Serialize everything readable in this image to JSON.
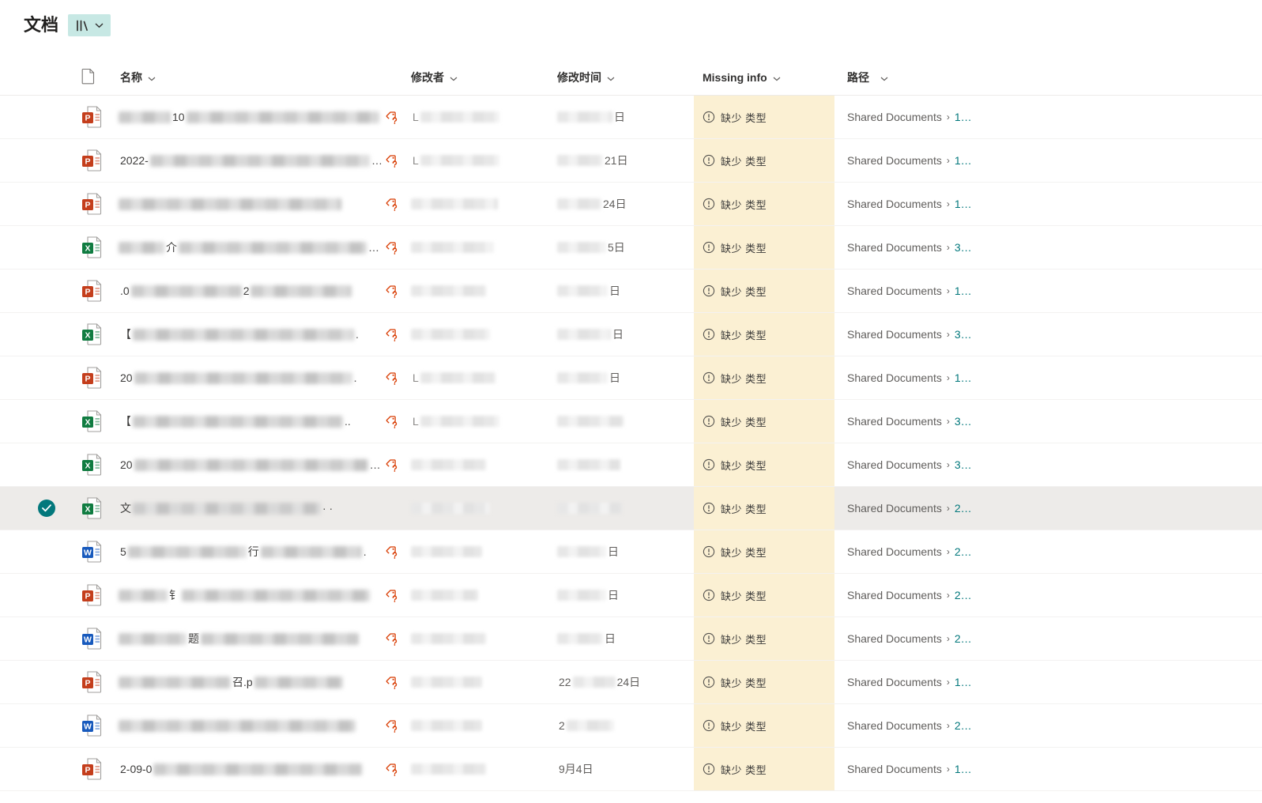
{
  "colors": {
    "accent_teal": "#03787c",
    "view_pill_bg": "#c7e8e4",
    "missing_bg": "#fbf0d3",
    "tag_orange": "#d83b01",
    "selected_row": "#edebe9",
    "path_link": "#03787c"
  },
  "header": {
    "title": "文档"
  },
  "file_types": {
    "pptx": {
      "letter": "P",
      "color": "#c43e1c"
    },
    "xlsx": {
      "letter": "X",
      "color": "#107c41"
    },
    "docx": {
      "letter": "W",
      "color": "#185abd"
    }
  },
  "table": {
    "columns": [
      {
        "id": "name",
        "label": "名称"
      },
      {
        "id": "modified_by",
        "label": "修改者"
      },
      {
        "id": "modified",
        "label": "修改时间"
      },
      {
        "id": "missing_info",
        "label": "Missing info"
      },
      {
        "id": "path",
        "label": "路径"
      }
    ],
    "missing_info_label": "缺少 类型",
    "path_prefix": "Shared Documents",
    "path_separator": "›",
    "rows": [
      {
        "type": "pptx",
        "selected": false,
        "tag": true,
        "name": {
          "pre": "",
          "b1": 66,
          "mid": "10",
          "b2": 244,
          "post": ""
        },
        "by": {
          "pre": "L",
          "b": 100
        },
        "date": {
          "pre": "",
          "b": 70,
          "post": "日"
        },
        "path": "1…"
      },
      {
        "type": "pptx",
        "selected": false,
        "tag": true,
        "name": {
          "pre": "2022-",
          "b1": 288,
          "mid": "",
          "b2": 0,
          "post": "…"
        },
        "by": {
          "pre": "L",
          "b": 100
        },
        "date": {
          "pre": "",
          "b": 58,
          "post": "21日"
        },
        "path": "1…"
      },
      {
        "type": "pptx",
        "selected": false,
        "tag": true,
        "name": {
          "pre": "",
          "b1": 282,
          "mid": "",
          "b2": 0,
          "post": ""
        },
        "by": {
          "pre": "",
          "b": 110
        },
        "date": {
          "pre": "",
          "b": 56,
          "post": "24日"
        },
        "path": "1…"
      },
      {
        "type": "xlsx",
        "selected": false,
        "tag": true,
        "name": {
          "pre": "",
          "b1": 58,
          "mid": "介",
          "b2": 238,
          "post": "…"
        },
        "by": {
          "pre": "",
          "b": 105
        },
        "date": {
          "pre": "",
          "b": 62,
          "post": "5日"
        },
        "path": "3…"
      },
      {
        "type": "pptx",
        "selected": false,
        "tag": true,
        "name": {
          "pre": ".0",
          "b1": 140,
          "mid": "2",
          "b2": 128,
          "post": ""
        },
        "by": {
          "pre": "",
          "b": 95
        },
        "date": {
          "pre": "",
          "b": 64,
          "post": "日"
        },
        "path": "1…"
      },
      {
        "type": "xlsx",
        "selected": false,
        "tag": true,
        "name": {
          "pre": "【",
          "b1": 280,
          "mid": "",
          "b2": 0,
          "post": "."
        },
        "by": {
          "pre": "",
          "b": 100
        },
        "date": {
          "pre": "",
          "b": 68,
          "post": "日"
        },
        "path": "3…"
      },
      {
        "type": "pptx",
        "selected": false,
        "tag": true,
        "name": {
          "pre": "20",
          "b1": 276,
          "mid": "",
          "b2": 0,
          "post": "."
        },
        "by": {
          "pre": "L",
          "b": 95
        },
        "date": {
          "pre": "",
          "b": 64,
          "post": "日"
        },
        "path": "1…"
      },
      {
        "type": "xlsx",
        "selected": false,
        "tag": true,
        "name": {
          "pre": "【",
          "b1": 266,
          "mid": "",
          "b2": 0,
          "post": ".."
        },
        "by": {
          "pre": "L",
          "b": 100
        },
        "date": {
          "pre": "",
          "b": 84,
          "post": ""
        },
        "path": "3…"
      },
      {
        "type": "xlsx",
        "selected": false,
        "tag": true,
        "name": {
          "pre": "20",
          "b1": 296,
          "mid": "",
          "b2": 0,
          "post": "…"
        },
        "by": {
          "pre": "",
          "b": 95
        },
        "date": {
          "pre": "",
          "b": 80,
          "post": ""
        },
        "path": "3…"
      },
      {
        "type": "xlsx",
        "selected": true,
        "tag": false,
        "name": {
          "pre": "文",
          "b1": 238,
          "mid": "",
          "b2": 0,
          "post": "· ·"
        },
        "by": {
          "pre": "",
          "b": 100
        },
        "date": {
          "pre": "",
          "b": 82,
          "post": ""
        },
        "path": "2…"
      },
      {
        "type": "docx",
        "selected": false,
        "tag": true,
        "name": {
          "pre": "5",
          "b1": 150,
          "mid": "行",
          "b2": 128,
          "post": "."
        },
        "by": {
          "pre": "",
          "b": 90
        },
        "date": {
          "pre": "",
          "b": 62,
          "post": "日"
        },
        "path": "2…"
      },
      {
        "type": "pptx",
        "selected": false,
        "tag": true,
        "name": {
          "pre": "",
          "b1": 62,
          "mid": "钅",
          "b2": 238,
          "post": ""
        },
        "by": {
          "pre": "",
          "b": 85
        },
        "date": {
          "pre": "",
          "b": 62,
          "post": "日"
        },
        "path": "2…"
      },
      {
        "type": "docx",
        "selected": false,
        "tag": true,
        "name": {
          "pre": "",
          "b1": 86,
          "mid": "题",
          "b2": 200,
          "post": ""
        },
        "by": {
          "pre": "",
          "b": 95
        },
        "date": {
          "pre": "",
          "b": 58,
          "post": "日"
        },
        "path": "2…"
      },
      {
        "type": "pptx",
        "selected": false,
        "tag": true,
        "name": {
          "pre": "",
          "b1": 142,
          "mid": "召.p",
          "b2": 112,
          "post": ""
        },
        "by": {
          "pre": "",
          "b": 90
        },
        "date": {
          "pre": "22",
          "b": 54,
          "post": "24日"
        },
        "path": "1…"
      },
      {
        "type": "docx",
        "selected": false,
        "tag": true,
        "name": {
          "pre": "",
          "b1": 300,
          "mid": "",
          "b2": 0,
          "post": ""
        },
        "by": {
          "pre": "",
          "b": 90
        },
        "date": {
          "pre": "2",
          "b": 60,
          "post": ""
        },
        "path": "2…"
      },
      {
        "type": "pptx",
        "selected": false,
        "tag": true,
        "name": {
          "pre": "2-09-0",
          "b1": 264,
          "mid": "",
          "b2": 0,
          "post": ""
        },
        "by": {
          "pre": "",
          "b": 95
        },
        "date": {
          "pre": "9月4日",
          "b": 0,
          "post": ""
        },
        "path": "1…"
      }
    ]
  }
}
